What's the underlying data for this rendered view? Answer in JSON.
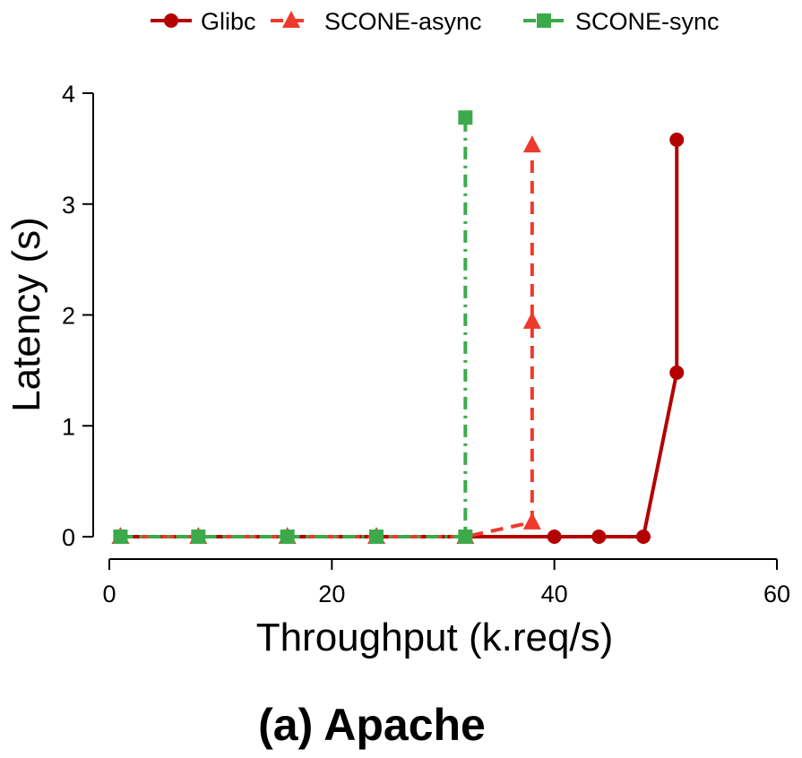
{
  "caption": "(a) Apache",
  "chart_data": {
    "type": "line",
    "xlabel": "Throughput (k.req/s)",
    "ylabel": "Latency (s)",
    "xlim": [
      0,
      60
    ],
    "ylim": [
      0,
      4
    ],
    "xticks": [
      "0",
      "20",
      "40",
      "60"
    ],
    "yticks": [
      "0",
      "1",
      "2",
      "3",
      "4"
    ],
    "grid": false,
    "legend_position": "top",
    "series": [
      {
        "name": "Glibc",
        "color": "#B30000",
        "marker": "circle",
        "line_style": "solid",
        "x": [
          1,
          8,
          16,
          24,
          32,
          40,
          44,
          48,
          51,
          51
        ],
        "y": [
          0,
          0,
          0,
          0,
          0,
          0,
          0,
          0,
          1.48,
          3.58
        ]
      },
      {
        "name": "SCONE-async",
        "color": "#EE3A2C",
        "marker": "triangle",
        "line_style": "dashed",
        "x": [
          1,
          8,
          16,
          24,
          32,
          38,
          38,
          38
        ],
        "y": [
          0,
          0,
          0,
          0,
          0,
          0.13,
          1.94,
          3.53
        ]
      },
      {
        "name": "SCONE-sync",
        "color": "#3CAA4B",
        "marker": "square",
        "line_style": "dashdot",
        "x": [
          1,
          8,
          16,
          24,
          32,
          32
        ],
        "y": [
          0,
          0,
          0,
          0,
          0,
          3.78
        ]
      }
    ]
  }
}
